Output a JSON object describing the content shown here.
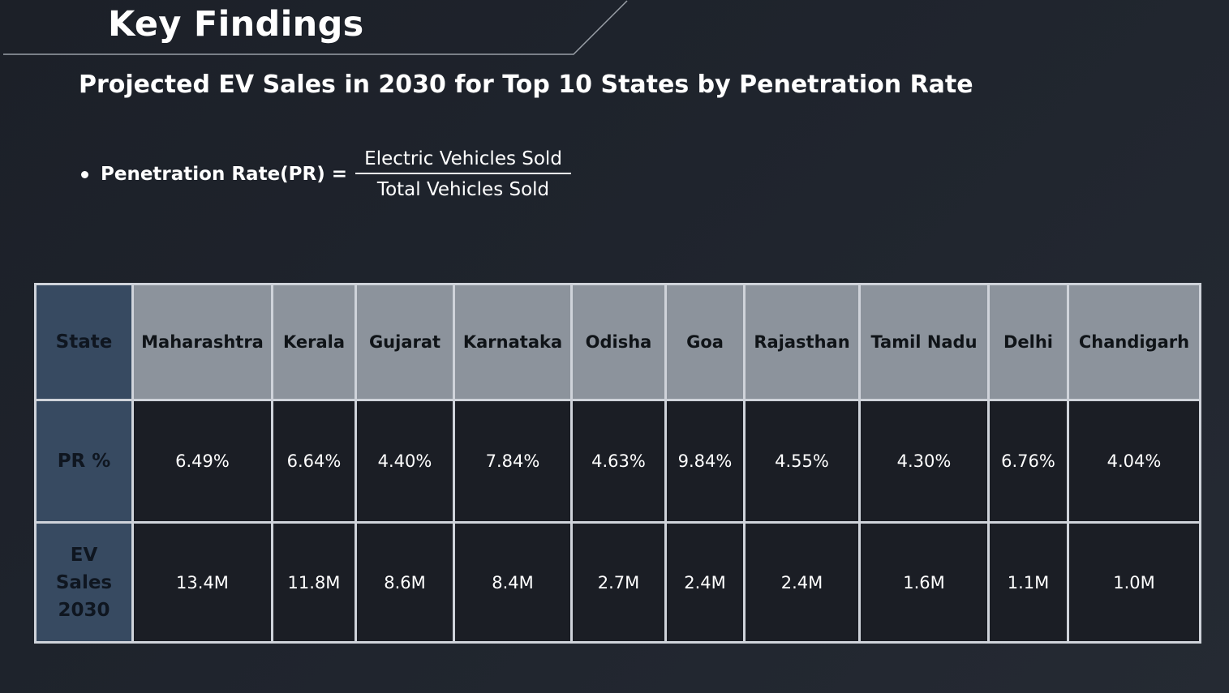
{
  "header": {
    "title": "Key Findings"
  },
  "subtitle": "Projected EV Sales in 2030 for Top 10 States by Penetration Rate",
  "formula": {
    "label": "Penetration Rate(PR) =",
    "numerator": "Electric Vehicles Sold",
    "denominator": "Total Vehicles Sold"
  },
  "table": {
    "row_headers": {
      "state": "State",
      "pr": "PR %",
      "sales_line1": "EV",
      "sales_line2": "Sales",
      "sales_line3": "2030"
    },
    "states": [
      "Maharashtra",
      "Kerala",
      "Gujarat",
      "Karnataka",
      "Odisha",
      "Goa",
      "Rajasthan",
      "Tamil Nadu",
      "Delhi",
      "Chandigarh"
    ],
    "pr": [
      "6.49%",
      "6.64%",
      "4.40%",
      "7.84%",
      "4.63%",
      "9.84%",
      "4.55%",
      "4.30%",
      "6.76%",
      "4.04%"
    ],
    "ev_sales_2030": [
      "13.4M",
      "11.8M",
      "8.6M",
      "8.4M",
      "2.7M",
      "2.4M",
      "2.4M",
      "1.6M",
      "1.1M",
      "1.0M"
    ]
  },
  "colors": {
    "background": "#1f242d",
    "row_header_fill": "#374a61",
    "state_row_fill": "#8c939c",
    "value_fill": "#1b1e25",
    "grid_line": "#cfd3da"
  }
}
